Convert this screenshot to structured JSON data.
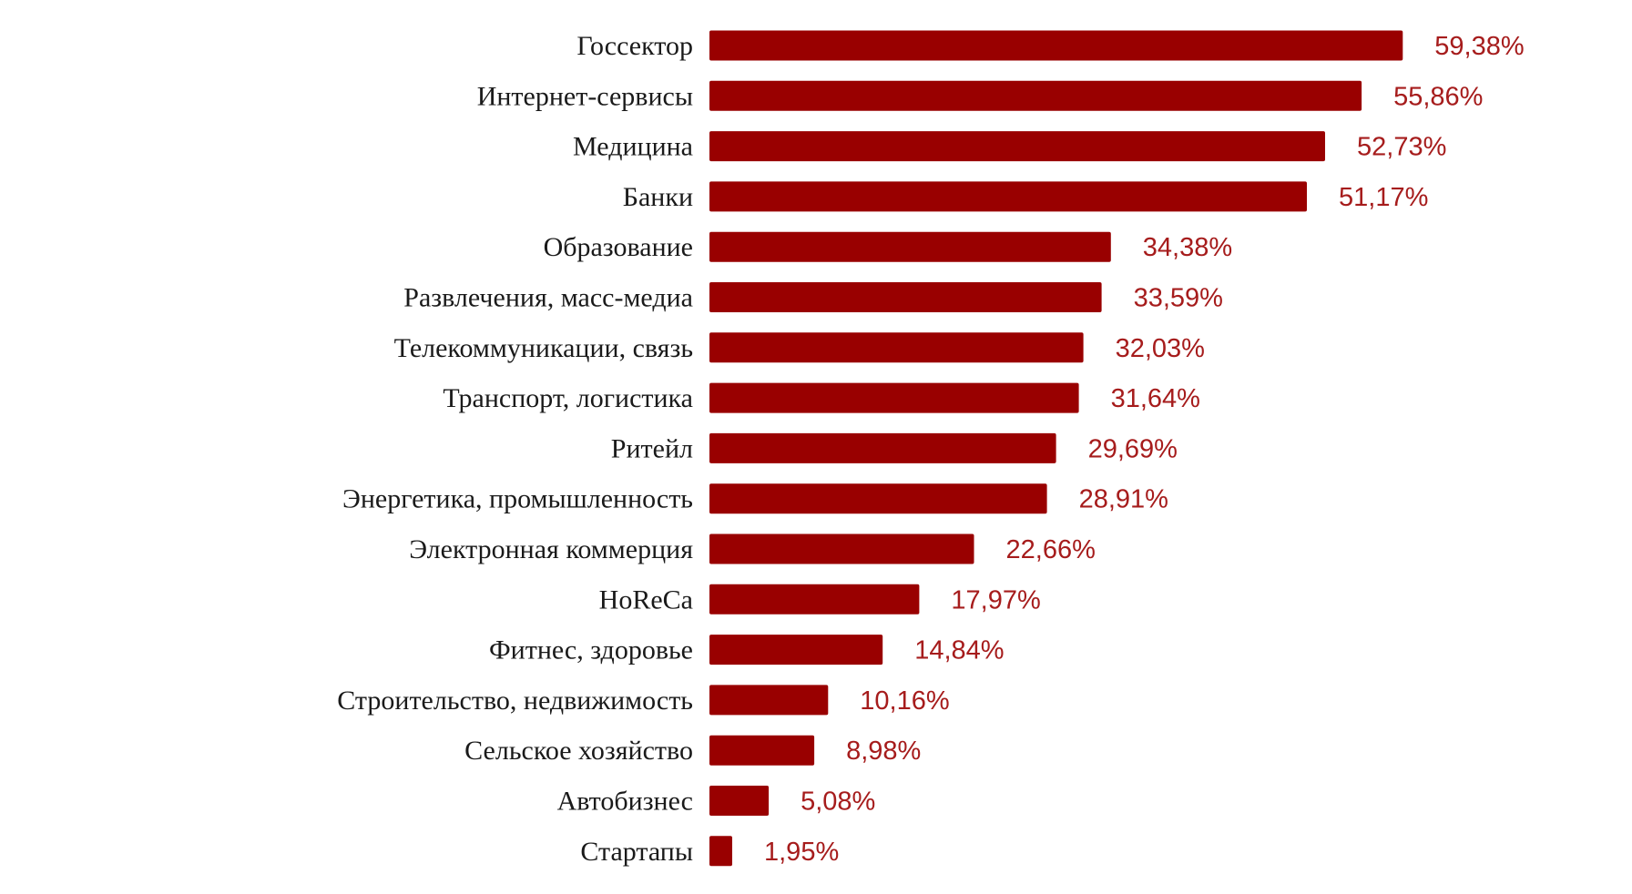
{
  "chart_data": {
    "type": "bar",
    "orientation": "horizontal",
    "categories": [
      "Госсектор",
      "Интернет-сервисы",
      "Медицина",
      "Банки",
      "Образование",
      "Развлечения, масс-медиа",
      "Телекоммуникации, связь",
      "Транспорт, логистика",
      "Ритейл",
      "Энергетика, промышленность",
      "Электронная коммерция",
      "HoReCa",
      "Фитнес, здоровье",
      "Строительство, недвижимость",
      "Сельское хозяйство",
      "Автобизнес",
      "Стартапы"
    ],
    "values": [
      59.38,
      55.86,
      52.73,
      51.17,
      34.38,
      33.59,
      32.03,
      31.64,
      29.69,
      28.91,
      22.66,
      17.97,
      14.84,
      10.16,
      8.98,
      5.08,
      1.95
    ],
    "value_labels": [
      "59,38%",
      "55,86%",
      "52,73%",
      "51,17%",
      "34,38%",
      "33,59%",
      "32,03%",
      "31,64%",
      "29,69%",
      "28,91%",
      "22,66%",
      "17,97%",
      "14,84%",
      "10,16%",
      "8,98%",
      "5,08%",
      "1,95%"
    ],
    "title": "",
    "xlabel": "",
    "ylabel": "",
    "xlim": [
      0,
      60
    ],
    "grid": false,
    "legend": "none",
    "colors": {
      "bar": "#990000",
      "value_label": "#a61c1c",
      "category_label": "#1a1a1a"
    }
  }
}
